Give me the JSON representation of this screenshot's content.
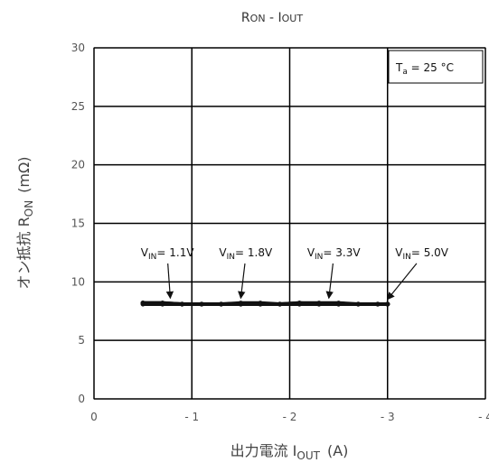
{
  "chart_data": {
    "type": "line",
    "title": {
      "r": "R",
      "r_sub": "ON",
      "sep": " - I",
      "i_sub": "OUT"
    },
    "xlabel": {
      "main": "出力電流 I",
      "sub": "OUT",
      "unit": "(A)"
    },
    "ylabel": {
      "main": "オン抵抗 R",
      "sub": "ON",
      "unit": "(mΩ)"
    },
    "xlim": [
      0,
      -4
    ],
    "ylim": [
      0,
      30
    ],
    "xticks": [
      {
        "v": 0,
        "label": "0"
      },
      {
        "v": -1,
        "label": "- 1"
      },
      {
        "v": -2,
        "label": "- 2"
      },
      {
        "v": -3,
        "label": "- 3"
      },
      {
        "v": -4,
        "label": "- 4"
      }
    ],
    "yticks": [
      {
        "v": 0,
        "label": "0"
      },
      {
        "v": 5,
        "label": "5"
      },
      {
        "v": 10,
        "label": "10"
      },
      {
        "v": 15,
        "label": "15"
      },
      {
        "v": 20,
        "label": "20"
      },
      {
        "v": 25,
        "label": "25"
      },
      {
        "v": 30,
        "label": "30"
      }
    ],
    "grid": true,
    "legend": {
      "t": "T",
      "t_sub": "a",
      "text": " = 25 °C",
      "placement": "top-right"
    },
    "series": [
      {
        "vin": "1.1V",
        "label_v": "V",
        "label_sub": "IN",
        "label_val": "= 1.1V",
        "x": [
          -0.5,
          -0.7,
          -0.9,
          -1.1,
          -1.3,
          -1.5,
          -1.7,
          -1.9,
          -2.1,
          -2.3,
          -2.5,
          -2.7,
          -2.9,
          -3.0
        ],
        "y": [
          8.2,
          8.2,
          8.1,
          8.1,
          8.1,
          8.1,
          8.1,
          8.1,
          8.1,
          8.1,
          8.1,
          8.1,
          8.1,
          8.1
        ]
      },
      {
        "vin": "1.8V",
        "label_v": "V",
        "label_sub": "IN",
        "label_val": "= 1.8V",
        "x": [
          -0.5,
          -0.7,
          -0.9,
          -1.1,
          -1.3,
          -1.5,
          -1.7,
          -1.9,
          -2.1,
          -2.3,
          -2.5,
          -2.7,
          -2.9,
          -3.0
        ],
        "y": [
          8.2,
          8.2,
          8.1,
          8.1,
          8.1,
          8.2,
          8.2,
          8.1,
          8.2,
          8.2,
          8.2,
          8.1,
          8.1,
          8.1
        ]
      },
      {
        "vin": "3.3V",
        "label_v": "V",
        "label_sub": "IN",
        "label_val": "= 3.3V",
        "x": [
          -0.5,
          -0.7,
          -0.9,
          -1.1,
          -1.3,
          -1.5,
          -1.7,
          -1.9,
          -2.1,
          -2.3,
          -2.5,
          -2.7,
          -2.9,
          -3.0
        ],
        "y": [
          8.1,
          8.1,
          8.1,
          8.1,
          8.1,
          8.1,
          8.1,
          8.1,
          8.1,
          8.1,
          8.1,
          8.1,
          8.1,
          8.1
        ]
      },
      {
        "vin": "5.0V",
        "label_v": "V",
        "label_sub": "IN",
        "label_val": "= 5.0V",
        "x": [
          -0.5,
          -0.7,
          -0.9,
          -1.1,
          -1.3,
          -1.5,
          -1.7,
          -1.9,
          -2.1,
          -2.3,
          -2.5,
          -2.7,
          -2.9,
          -3.0
        ],
        "y": [
          8.2,
          8.1,
          8.1,
          8.1,
          8.1,
          8.1,
          8.1,
          8.1,
          8.2,
          8.1,
          8.1,
          8.1,
          8.1,
          8.1
        ]
      }
    ],
    "annotations": [
      {
        "series": "1.1V",
        "text_x": -0.75,
        "text_y": 12.5,
        "arrow_to_x": -0.78,
        "arrow_to_y": 8.6
      },
      {
        "series": "1.8V",
        "text_x": -1.55,
        "text_y": 12.5,
        "arrow_to_x": -1.5,
        "arrow_to_y": 8.6
      },
      {
        "series": "3.3V",
        "text_x": -2.45,
        "text_y": 12.5,
        "arrow_to_x": -2.4,
        "arrow_to_y": 8.6
      },
      {
        "series": "5.0V",
        "text_x": -3.35,
        "text_y": 12.5,
        "arrow_to_x": -3.0,
        "arrow_to_y": 8.5
      }
    ]
  }
}
